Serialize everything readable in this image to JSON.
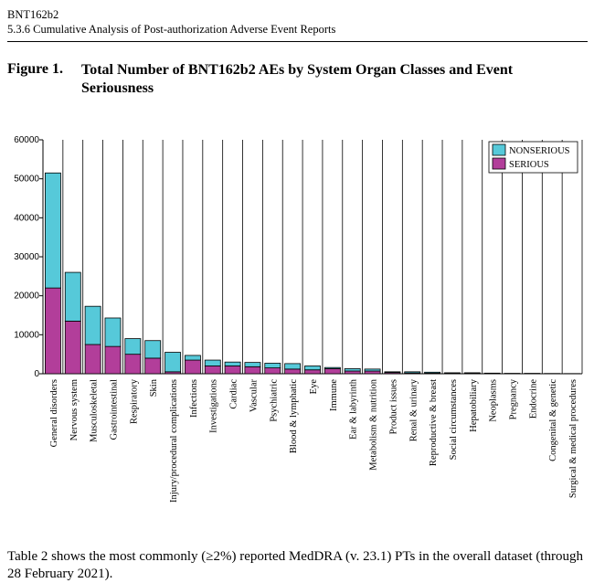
{
  "header": {
    "product": "BNT162b2",
    "section": "5.3.6 Cumulative Analysis of Post-authorization Adverse Event Reports"
  },
  "figure": {
    "label": "Figure 1.",
    "title": "Total Number of BNT162b2 AEs by System Organ Classes and Event Seriousness"
  },
  "chart_data": {
    "type": "bar",
    "stacked": true,
    "categories": [
      "General disorders",
      "Nervous system",
      "Musculoskeletal",
      "Gastrointestinal",
      "Respiratory",
      "Skin",
      "Injury/procedural complications",
      "Infections",
      "Investigations",
      "Cardiac",
      "Vascular",
      "Psychiatric",
      "Blood & lymphatic",
      "Eye",
      "Immune",
      "Ear & labyrinth",
      "Metabolism & nutrition",
      "Product issues",
      "Renal & urinary",
      "Reproductive & breast",
      "Social circumstances",
      "Hepatobiliary",
      "Neoplasms",
      "Pregnancy",
      "Endocrine",
      "Congenital & genetic",
      "Surgical & medical procedures"
    ],
    "series": [
      {
        "name": "SERIOUS",
        "color": "#b23e9a",
        "values": [
          22000,
          13500,
          7500,
          7000,
          5000,
          4000,
          500,
          3500,
          2000,
          2000,
          1800,
          1500,
          1200,
          1000,
          1300,
          700,
          700,
          300,
          200,
          150,
          100,
          150,
          80,
          50,
          50,
          30,
          20
        ]
      },
      {
        "name": "NONSERIOUS",
        "color": "#56c9d9",
        "values": [
          29500,
          12500,
          9800,
          7300,
          4000,
          4500,
          5000,
          1200,
          1500,
          1000,
          1100,
          1200,
          1400,
          1000,
          300,
          600,
          500,
          200,
          300,
          250,
          150,
          100,
          80,
          50,
          50,
          40,
          30
        ]
      }
    ],
    "ylim": [
      0,
      60000
    ],
    "yticks": [
      0,
      10000,
      20000,
      30000,
      40000,
      50000,
      60000
    ],
    "legend": "top-right",
    "grid": "vertical"
  },
  "body_text": "Table 2 shows the most commonly (≥2%) reported MedDRA (v. 23.1) PTs in the overall dataset (through 28 February 2021)."
}
